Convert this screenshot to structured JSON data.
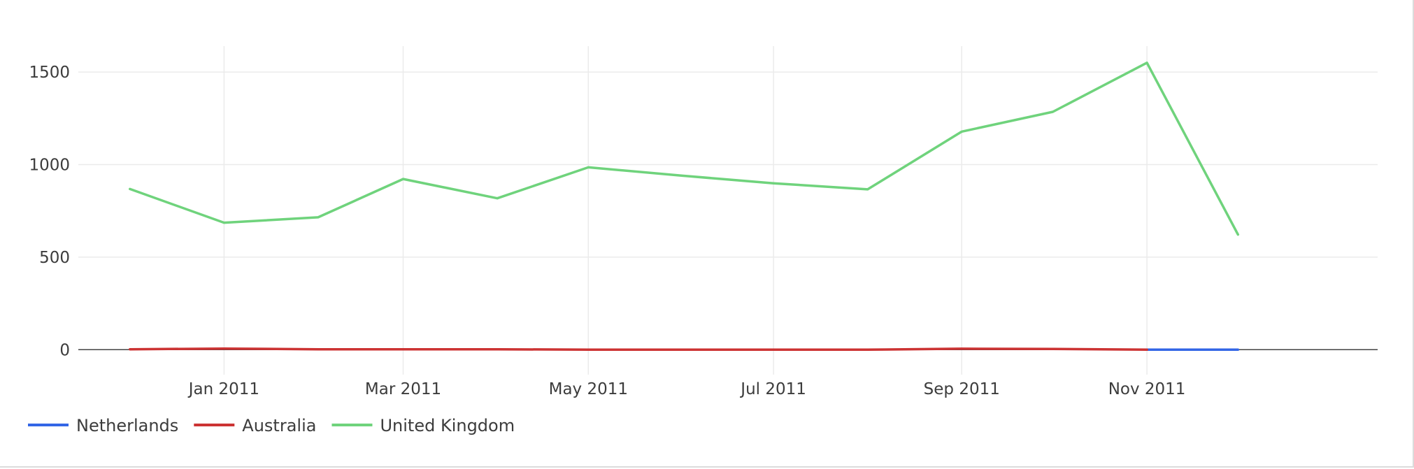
{
  "chart_data": {
    "type": "line",
    "title": "",
    "xlabel": "",
    "ylabel": "",
    "x": [
      "2010-12",
      "2011-01",
      "2011-02",
      "2011-03",
      "2011-04",
      "2011-05",
      "2011-06",
      "2011-07",
      "2011-08",
      "2011-09",
      "2011-10",
      "2011-11",
      "2011-12"
    ],
    "x_ticks": [
      {
        "value": "2011-01",
        "label": "Jan 2011"
      },
      {
        "value": "2011-03",
        "label": "Mar 2011"
      },
      {
        "value": "2011-05",
        "label": "May 2011"
      },
      {
        "value": "2011-07",
        "label": "Jul 2011"
      },
      {
        "value": "2011-09",
        "label": "Sep 2011"
      },
      {
        "value": "2011-11",
        "label": "Nov 2011"
      }
    ],
    "xlim": [
      "2010-11-14",
      "2012-01-16"
    ],
    "y_ticks": [
      0,
      500,
      1000,
      1500
    ],
    "ylim": [
      -135,
      1640
    ],
    "grid": true,
    "legend_position": "bottom-left",
    "series": [
      {
        "name": "Netherlands",
        "color": "#3366e6",
        "values": [
          null,
          null,
          null,
          null,
          null,
          null,
          null,
          null,
          null,
          null,
          null,
          0,
          0
        ]
      },
      {
        "name": "Australia",
        "color": "#cc3333",
        "values": [
          2,
          6,
          2,
          2,
          2,
          0,
          0,
          0,
          0,
          5,
          4,
          0,
          null
        ]
      },
      {
        "name": "United Kingdom",
        "color": "#6fd37c",
        "values": [
          868,
          686,
          715,
          922,
          818,
          985,
          940,
          899,
          866,
          1178,
          1285,
          1550,
          622
        ]
      }
    ]
  }
}
